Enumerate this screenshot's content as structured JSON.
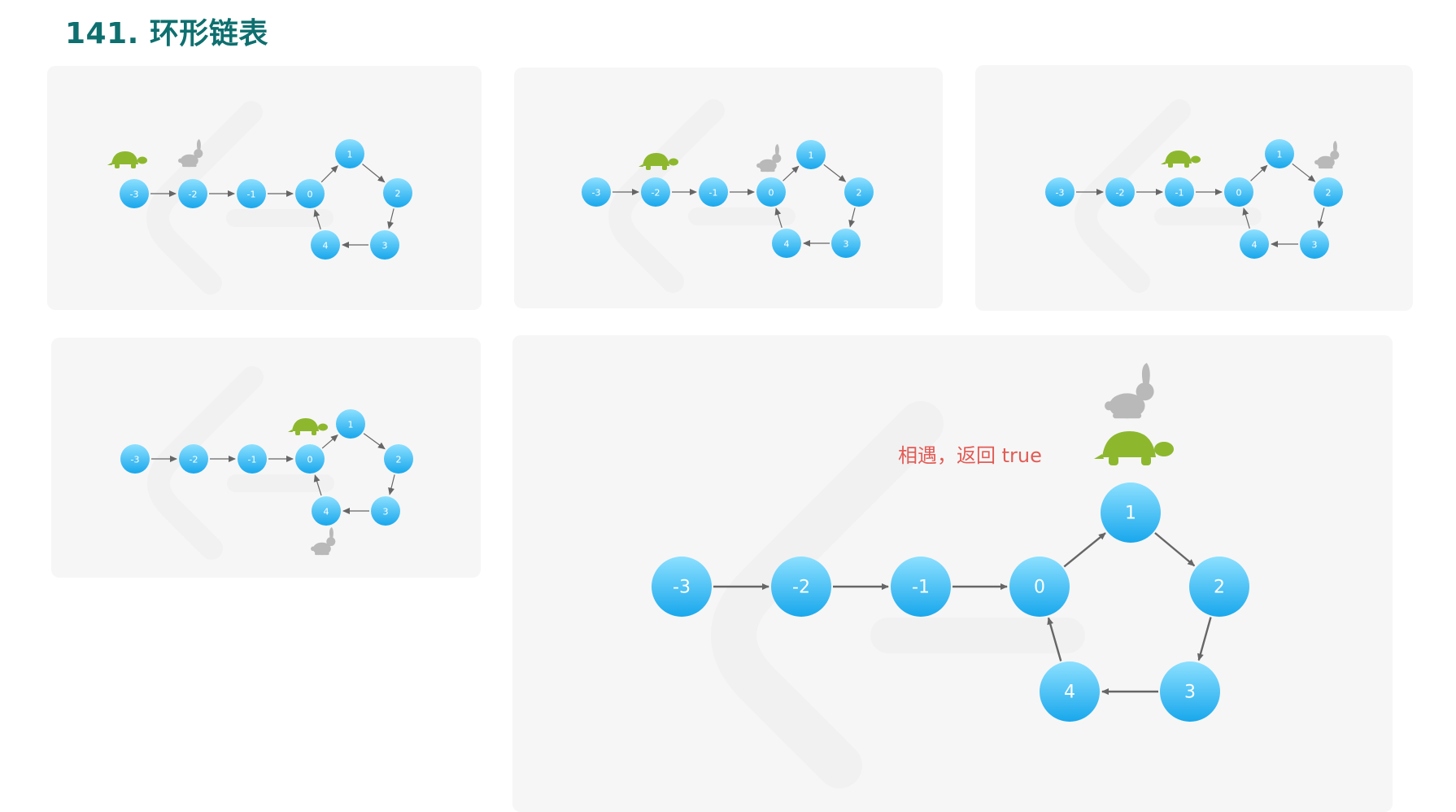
{
  "title": "141. 环形链表",
  "diagram": {
    "nodes": [
      "-3",
      "-2",
      "-1",
      "0",
      "1",
      "2",
      "3",
      "4"
    ],
    "edges": [
      [
        "-3",
        "-2"
      ],
      [
        "-2",
        "-1"
      ],
      [
        "-1",
        "0"
      ],
      [
        "0",
        "1"
      ],
      [
        "1",
        "2"
      ],
      [
        "2",
        "3"
      ],
      [
        "3",
        "4"
      ],
      [
        "4",
        "0"
      ]
    ],
    "colors": {
      "node_top": "#8ce0ff",
      "node_bottom": "#18a7ec",
      "turtle": "#8db82e",
      "rabbit": "#b9b9b9",
      "edge": "#666666",
      "annotation": "#e25b55"
    },
    "icons": {
      "slow_pointer": "turtle-icon",
      "fast_pointer": "rabbit-icon"
    }
  },
  "steps": [
    {
      "turtle": "-3",
      "rabbit": "-2"
    },
    {
      "turtle": "-2",
      "rabbit": "0"
    },
    {
      "turtle": "-1",
      "rabbit": "2"
    },
    {
      "turtle": "0",
      "rabbit": "4"
    },
    {
      "turtle": "1",
      "rabbit": "1",
      "annotation": "相遇，返回 true"
    }
  ]
}
